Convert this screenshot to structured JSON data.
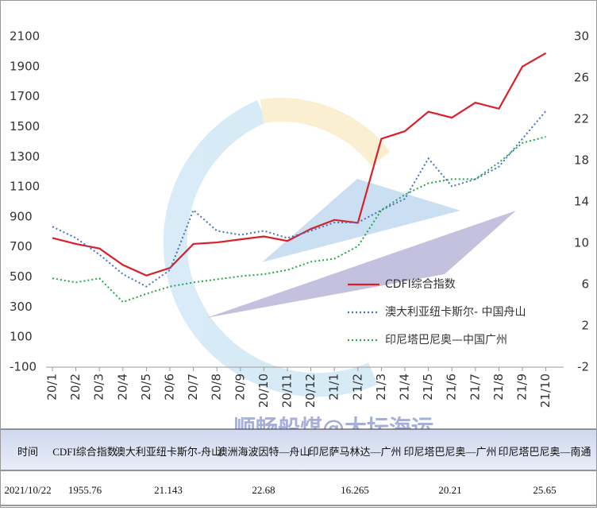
{
  "chart_data": {
    "type": "line",
    "categories": [
      "20/1",
      "20/2",
      "20/3",
      "20/4",
      "20/5",
      "20/6",
      "20/7",
      "20/8",
      "20/9",
      "20/10",
      "20/11",
      "20/12",
      "21/1",
      "21/2",
      "21/3",
      "21/4",
      "21/5",
      "21/6",
      "21/7",
      "21/8",
      "21/9",
      "21/10"
    ],
    "series": [
      {
        "name": "CDFI综合指数",
        "color": "#d9202a",
        "axis": "y",
        "dash": false,
        "values": [
          760,
          720,
          690,
          580,
          510,
          560,
          720,
          730,
          750,
          770,
          740,
          820,
          880,
          860,
          1420,
          1470,
          1600,
          1560,
          1660,
          1620,
          1900,
          1990
        ]
      },
      {
        "name": "澳大利亚纽卡斯尔- 中国舟山",
        "color": "#4472c4",
        "axis": "y2",
        "dash": true,
        "values": [
          11.6,
          10.5,
          8.9,
          7,
          5.8,
          7.4,
          13.2,
          11.2,
          10.8,
          11.2,
          10.5,
          11.2,
          12,
          12,
          13.2,
          14.3,
          18.2,
          15.5,
          16.2,
          17.4,
          20.1,
          22.8
        ]
      },
      {
        "name": "印尼塔巴尼奥—中国广州",
        "color": "#22a84a",
        "axis": "y2",
        "dash": true,
        "values": [
          6.6,
          6.2,
          6.6,
          4.3,
          5.1,
          5.8,
          6.2,
          6.5,
          6.8,
          7,
          7.4,
          8.2,
          8.5,
          9.7,
          13.2,
          14.7,
          15.8,
          16.2,
          16.2,
          17.8,
          19.7,
          20.3
        ]
      }
    ],
    "ylim": [
      -100,
      2100
    ],
    "yticks": [
      2100,
      1900,
      1700,
      1500,
      1300,
      1100,
      900,
      700,
      500,
      300,
      100,
      -100
    ],
    "y2lim": [
      -2,
      30
    ],
    "y2ticks": [
      30,
      26,
      22,
      18,
      14,
      10,
      6,
      2,
      -2
    ],
    "watermark": "顺畅船煤@大坛海运"
  },
  "table": {
    "header": [
      "时间",
      "CDFI综合指数",
      "澳大利亚纽卡斯尔-舟山",
      "澳洲海波因特—舟山",
      "印尼萨马林达—广州",
      "印尼塔巴尼奥—广州",
      "印尼塔巴尼奥—南通"
    ],
    "rows": [
      [
        "2021/10/22",
        "1955.76",
        "21.143",
        "22.68",
        "16.265",
        "20.21",
        "25.65"
      ]
    ]
  }
}
